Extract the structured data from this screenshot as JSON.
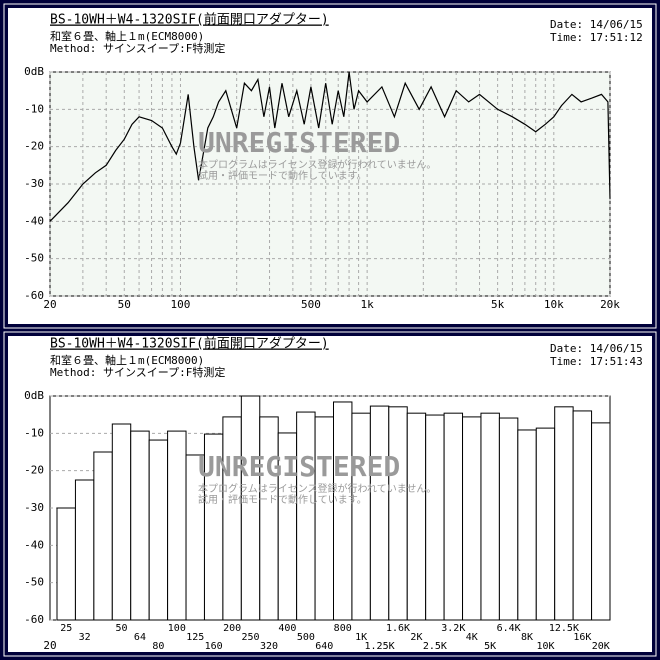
{
  "chart_data": [
    {
      "type": "line",
      "title": "BS-10WH＋W4-1320SIF(前面開口アダプター)",
      "info_lines": [
        "和室６畳、軸上１m(ECM8000)",
        "Method: サインスイープ:F特測定"
      ],
      "date": "Date: 14/06/15",
      "time": "Time: 17:51:12",
      "watermark": "UNREGISTERED",
      "watermark_lines": [
        "本プログラムはライセンス登録が行われていません。",
        "試用・評価モードで動作しています。"
      ],
      "x_log": true,
      "grid": true,
      "color": "#000000",
      "xlim": [
        20,
        20000
      ],
      "xticks": [
        20,
        50,
        100,
        500,
        {
          "value": 1000,
          "label": "1k"
        },
        {
          "value": 5000,
          "label": "5k"
        },
        {
          "value": 10000,
          "label": "10k"
        },
        {
          "value": 20000,
          "label": "20k"
        }
      ],
      "xminorticks": [
        30,
        40,
        60,
        70,
        80,
        90,
        200,
        300,
        400,
        600,
        700,
        800,
        900,
        2000,
        3000,
        4000,
        6000,
        7000,
        8000,
        9000
      ],
      "ylim": [
        -60,
        0
      ],
      "yticks": [
        {
          "value": 0,
          "label": "0dB"
        },
        -10,
        -20,
        -30,
        -40,
        -50,
        -60
      ],
      "x": [
        20,
        25,
        30,
        35,
        40,
        45,
        50,
        55,
        60,
        70,
        80,
        90,
        95,
        100,
        110,
        118,
        125,
        140,
        150,
        160,
        175,
        200,
        220,
        240,
        260,
        280,
        300,
        320,
        350,
        380,
        420,
        460,
        500,
        550,
        600,
        650,
        700,
        750,
        800,
        850,
        900,
        1000,
        1200,
        1400,
        1600,
        1900,
        2200,
        2600,
        3000,
        3500,
        4000,
        5000,
        6000,
        7000,
        8000,
        9000,
        10000,
        11000,
        12500,
        14000,
        16000,
        18000,
        19500,
        20000
      ],
      "values": [
        -40,
        -35,
        -30,
        -27,
        -25,
        -21,
        -18,
        -14,
        -12,
        -13,
        -15,
        -20,
        -22,
        -19,
        -6,
        -20,
        -29,
        -15,
        -12,
        -8,
        -5,
        -15,
        -3,
        -5,
        -2,
        -12,
        -4,
        -15,
        -3,
        -12,
        -5,
        -14,
        -4,
        -15,
        -3,
        -14,
        -5,
        -12,
        0,
        -10,
        -5,
        -8,
        -4,
        -12,
        -3,
        -10,
        -4,
        -12,
        -5,
        -8,
        -6,
        -10,
        -12,
        -14,
        -16,
        -14,
        -12,
        -9,
        -6,
        -8,
        -7,
        -6,
        -8,
        -34
      ]
    },
    {
      "type": "bar",
      "title": "BS-10WH＋W4-1320SIF(前面開口アダプター)",
      "info_lines": [
        "和室６畳、軸上１m(ECM8000)",
        "Method: サインスイープ:F特測定"
      ],
      "date": "Date: 14/06/15",
      "time": "Time: 17:51:43",
      "watermark": "UNREGISTERED",
      "watermark_lines": [
        "本プログラムはライセンス登録が行われていません。",
        "試用・評価モードで動作しています。"
      ],
      "grid": true,
      "color": "#ffffff",
      "x_edge_label": "20",
      "categories": [
        "25",
        "32",
        null,
        "50",
        "64",
        "80",
        "100",
        "125",
        "160",
        "200",
        "250",
        "320",
        "400",
        "500",
        "640",
        "800",
        "1K",
        "1.25K",
        "1.6K",
        "2K",
        "2.5K",
        "3.2K",
        "4K",
        "5K",
        "6.4K",
        "8K",
        "10K",
        "12.5K",
        "16K",
        "20K"
      ],
      "values": [
        -30,
        -22.5,
        -15,
        -7.5,
        -9.4,
        -11.8,
        -9.4,
        -15.8,
        -10.2,
        -5.6,
        0,
        -5.6,
        -9.9,
        -4.3,
        -5.6,
        -1.6,
        -4.6,
        -2.7,
        -2.9,
        -4.6,
        -5.1,
        -4.6,
        -5.6,
        -4.6,
        -5.9,
        -9.1,
        -8.6,
        -2.9,
        -4,
        -7.2
      ],
      "ylim": [
        -60,
        0
      ],
      "yticks": [
        {
          "value": 0,
          "label": "0dB"
        },
        -10,
        -20,
        -30,
        -40,
        -50,
        -60
      ]
    }
  ]
}
